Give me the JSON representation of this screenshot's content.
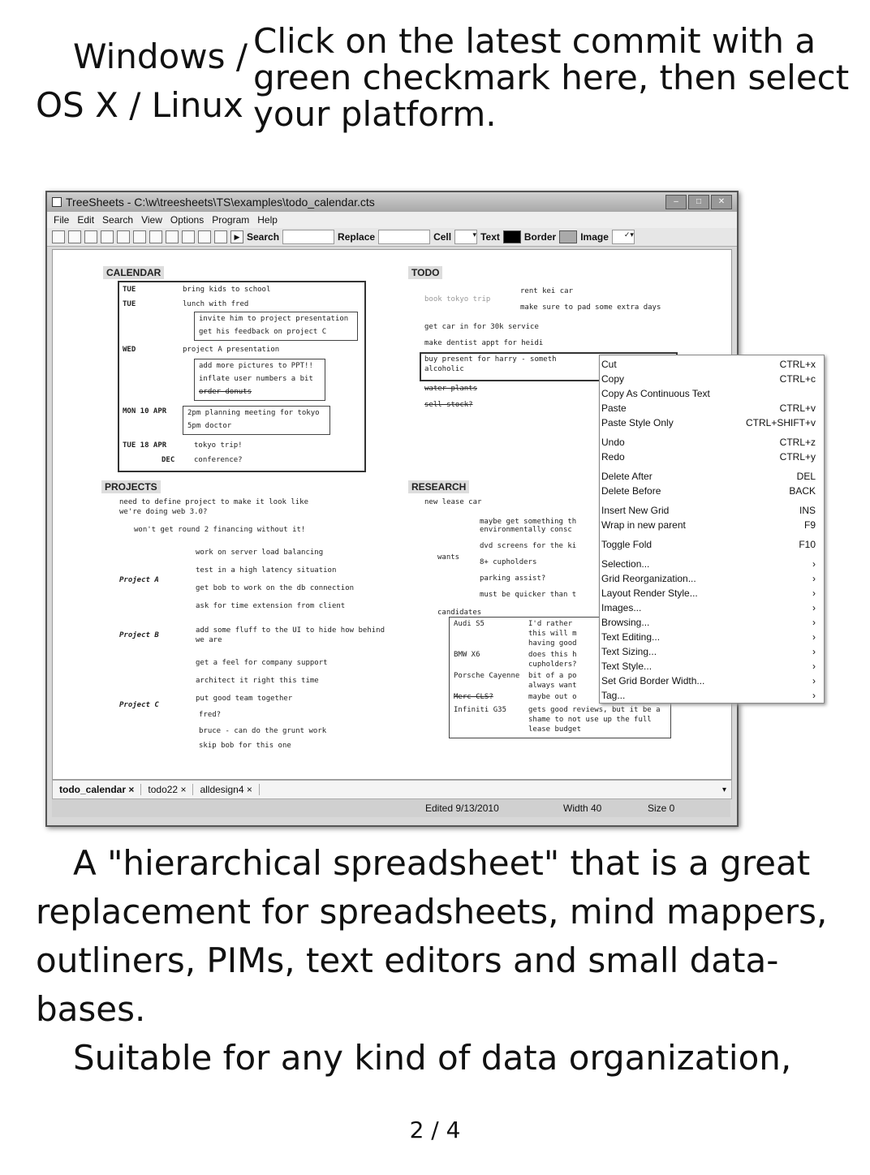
{
  "header": {
    "left_text": "Windows / OS X / Linux",
    "right_text": "Click on the latest commit with a green checkmark here, then select your platform."
  },
  "screenshot": {
    "title": "TreeSheets - C:\\w\\treesheets\\TS\\examples\\todo_calendar.cts",
    "menu": [
      "File",
      "Edit",
      "Search",
      "View",
      "Options",
      "Program",
      "Help"
    ],
    "toolbar": {
      "search": "Search",
      "replace": "Replace",
      "cell": "Cell",
      "text": "Text",
      "border": "Border",
      "image": "Image"
    },
    "calendar": {
      "title": "CALENDAR",
      "rows": [
        {
          "day": "TUE",
          "item": "bring kids to school"
        },
        {
          "day": "TUE",
          "item": "lunch with fred"
        },
        {
          "day": "WED",
          "item": "project A presentation"
        },
        {
          "day": "MON  10  APR",
          "item": ""
        },
        {
          "day": "TUE  18  APR",
          "item": "tokyo trip!"
        },
        {
          "day": "DEC",
          "item": "conference?"
        }
      ],
      "lunch_sub": [
        "invite him to project presentation",
        "get his feedback on project C"
      ],
      "wed_sub": [
        "add more pictures to PPT!!",
        "inflate user numbers a bit",
        "order donuts"
      ],
      "mon_sub": [
        "2pm  planning meeting for tokyo",
        "5pm  doctor"
      ]
    },
    "todo": {
      "title": "TODO",
      "items": [
        "book tokyo trip",
        "get car in for 30k service",
        "make dentist appt for heidi",
        "buy present for harry - someth",
        "alcoholic",
        "water plants",
        "sell stock?"
      ],
      "book_sub": [
        "rent kei car",
        "make sure to pad some extra days"
      ]
    },
    "projects": {
      "title": "PROJECTS",
      "intro": [
        "need to define project to make it look like",
        "we're doing web 3.0?"
      ],
      "intro_sub": "won't get round 2 financing without it!",
      "a_label": "Project A",
      "a_items": [
        "work on server load balancing",
        "test in a high latency situation",
        "get bob to work on the db connection",
        "ask for time extension from client"
      ],
      "b_label": "Project B",
      "b_items": [
        "add some fluff to the UI to hide how behind",
        "we are"
      ],
      "c_label": "Project C",
      "c_items": [
        "get a feel for company support",
        "architect it right this time",
        "put good team together"
      ],
      "c_sub": [
        "fred?",
        "bruce - can do the grunt work",
        "skip bob for this one"
      ]
    },
    "research": {
      "title": "RESEARCH",
      "lease": "new lease car",
      "wants": "wants",
      "wants_items": [
        "maybe get something th",
        "environmentally consc",
        "dvd screens for the ki",
        "8+ cupholders",
        "parking assist?",
        "must be quicker than t"
      ],
      "candidates": "candidates",
      "cand_cars": [
        "Audi S5",
        "BMW X6",
        "Porsche Cayenne",
        "Merc CLS?",
        "Infiniti G35"
      ],
      "cand_notes": [
        "I'd rather",
        "this will m",
        "having good",
        "does this h",
        "cupholders?",
        "bit of a po",
        "always want",
        "maybe out o",
        "gets good reviews, but it be a",
        "shame to not use up the full",
        "lease budget"
      ]
    },
    "context_menu": [
      {
        "label": "Cut",
        "shortcut": "CTRL+x"
      },
      {
        "label": "Copy",
        "shortcut": "CTRL+c"
      },
      {
        "label": "Copy As Continuous Text",
        "shortcut": ""
      },
      {
        "label": "Paste",
        "shortcut": "CTRL+v"
      },
      {
        "label": "Paste Style Only",
        "shortcut": "CTRL+SHIFT+v"
      },
      {
        "label": "Undo",
        "shortcut": "CTRL+z"
      },
      {
        "label": "Redo",
        "shortcut": "CTRL+y"
      },
      {
        "label": "Delete After",
        "shortcut": "DEL"
      },
      {
        "label": "Delete Before",
        "shortcut": "BACK"
      },
      {
        "label": "Insert New Grid",
        "shortcut": "INS"
      },
      {
        "label": "Wrap in new parent",
        "shortcut": "F9"
      },
      {
        "label": "Toggle Fold",
        "shortcut": "F10"
      },
      {
        "label": "Selection...",
        "shortcut": "›"
      },
      {
        "label": "Grid Reorganization...",
        "shortcut": "›"
      },
      {
        "label": "Layout Render Style...",
        "shortcut": "›"
      },
      {
        "label": "Images...",
        "shortcut": "›"
      },
      {
        "label": "Browsing...",
        "shortcut": "›"
      },
      {
        "label": "Text Editing...",
        "shortcut": "›"
      },
      {
        "label": "Text Sizing...",
        "shortcut": "›"
      },
      {
        "label": "Text Style...",
        "shortcut": "›"
      },
      {
        "label": "Set Grid Border Width...",
        "shortcut": "›"
      },
      {
        "label": "Tag...",
        "shortcut": "›"
      }
    ],
    "tabs": [
      "todo_calendar",
      "todo22",
      "alldesign4"
    ],
    "tab_close": "×",
    "status": {
      "edited": "Edited 9/13/2010",
      "width": "Width 40",
      "size": "Size 0"
    }
  },
  "body_paragraphs": [
    "A \"hierarchical spreadsheet\" that is a great replacement for spreadsheets, mind mappers, outliners, PIMs, text editors and small data-bases.",
    "Suitable for any kind of data organization,"
  ],
  "footer": {
    "page_indicator": "2 / 4"
  }
}
